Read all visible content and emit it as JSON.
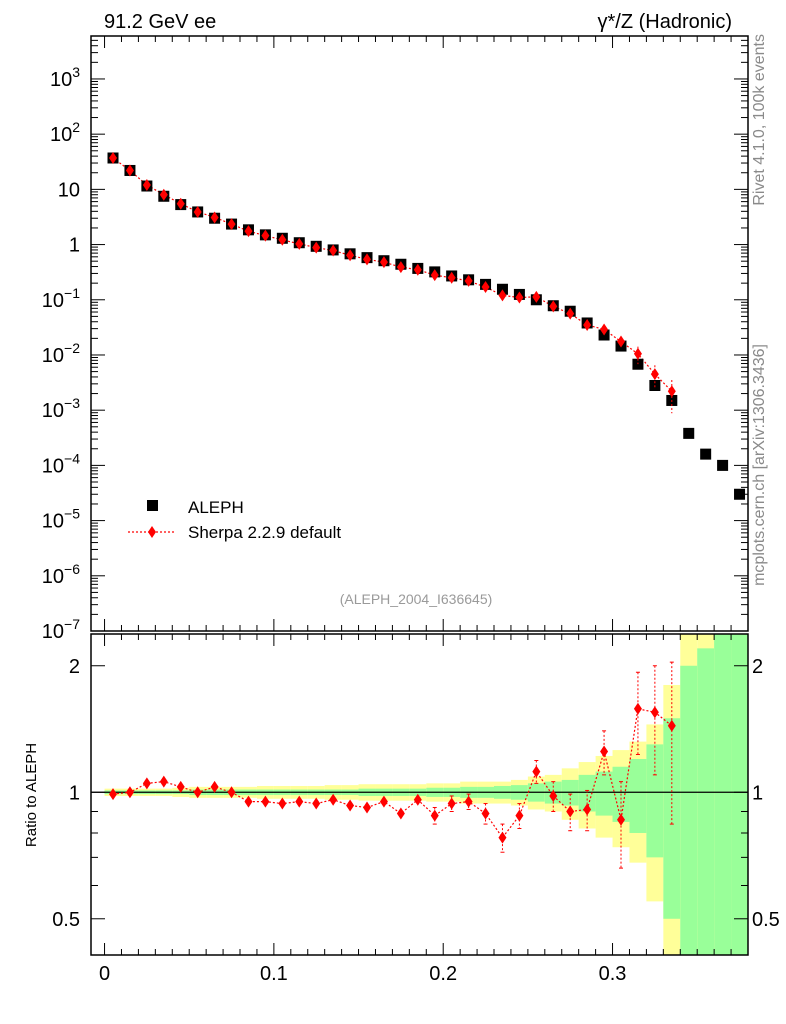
{
  "header": {
    "left_title": "91.2 GeV ee",
    "right_title": "γ*/Z (Hadronic)"
  },
  "side_labels": {
    "rivet": "Rivet 4.1.0,  100k events",
    "mcplots": "mcplots.cern.ch [arXiv:1306.3436]"
  },
  "watermark": "(ALEPH_2004_I636645)",
  "legend": {
    "data_label": "ALEPH",
    "mc_label": "Sherpa 2.2.9 default"
  },
  "colors": {
    "data": "#000000",
    "mc": "#ff0000",
    "band_inner": "#99ff99",
    "band_outer": "#ffff99",
    "side_text": "#8a8a8a"
  },
  "chart_data": [
    {
      "type": "scatter",
      "yscale": "log",
      "xlim": [
        -0.008,
        0.38
      ],
      "ylim": [
        1e-07,
        6000
      ],
      "ytick_labels": [
        {
          "base": "10",
          "exp": "3",
          "value": 1000
        },
        {
          "base": "10",
          "exp": "2",
          "value": 100
        },
        {
          "base": "10",
          "exp": "",
          "value": 10
        },
        {
          "base": "1",
          "exp": "",
          "value": 1
        },
        {
          "base": "10",
          "exp": "−1",
          "value": 0.1
        },
        {
          "base": "10",
          "exp": "−2",
          "value": 0.01
        },
        {
          "base": "10",
          "exp": "−3",
          "value": 0.001
        },
        {
          "base": "10",
          "exp": "−4",
          "value": 0.0001
        },
        {
          "base": "10",
          "exp": "−5",
          "value": 1e-05
        },
        {
          "base": "10",
          "exp": "−6",
          "value": 1e-06
        },
        {
          "base": "10",
          "exp": "−7",
          "value": 1e-07
        }
      ],
      "series": [
        {
          "name": "ALEPH",
          "marker": "square",
          "x": [
            0.005,
            0.015,
            0.025,
            0.035,
            0.045,
            0.055,
            0.065,
            0.075,
            0.085,
            0.095,
            0.105,
            0.115,
            0.125,
            0.135,
            0.145,
            0.155,
            0.165,
            0.175,
            0.185,
            0.195,
            0.205,
            0.215,
            0.225,
            0.235,
            0.245,
            0.255,
            0.265,
            0.275,
            0.285,
            0.295,
            0.305,
            0.315,
            0.325,
            0.335,
            0.345,
            0.355,
            0.365,
            0.375
          ],
          "y": [
            37,
            22,
            11.5,
            7.5,
            5.3,
            3.9,
            3.0,
            2.35,
            1.85,
            1.5,
            1.3,
            1.08,
            0.93,
            0.8,
            0.68,
            0.58,
            0.51,
            0.44,
            0.37,
            0.32,
            0.27,
            0.23,
            0.19,
            0.155,
            0.125,
            0.1,
            0.078,
            0.062,
            0.038,
            0.023,
            0.0145,
            0.0068,
            0.0028,
            0.0015,
            0.00038,
            0.00016,
            0.0001,
            3e-05
          ]
        },
        {
          "name": "Sherpa 2.2.9 default",
          "marker": "diamond",
          "x": [
            0.005,
            0.015,
            0.025,
            0.035,
            0.045,
            0.055,
            0.065,
            0.075,
            0.085,
            0.095,
            0.105,
            0.115,
            0.125,
            0.135,
            0.145,
            0.155,
            0.165,
            0.175,
            0.185,
            0.195,
            0.205,
            0.215,
            0.225,
            0.235,
            0.245,
            0.255,
            0.265,
            0.275,
            0.285,
            0.295,
            0.305,
            0.315,
            0.325,
            0.335
          ],
          "y": [
            37,
            22,
            12,
            8,
            5.5,
            3.9,
            3.1,
            2.35,
            1.75,
            1.45,
            1.22,
            1.03,
            0.88,
            0.78,
            0.64,
            0.54,
            0.48,
            0.39,
            0.35,
            0.28,
            0.25,
            0.22,
            0.17,
            0.12,
            0.11,
            0.113,
            0.076,
            0.056,
            0.035,
            0.029,
            0.0175,
            0.0105,
            0.0045,
            0.0022
          ]
        }
      ]
    },
    {
      "type": "scatter",
      "yscale": "log",
      "ylabel": "Ratio to ALEPH",
      "xlim": [
        -0.008,
        0.38
      ],
      "ylim": [
        0.41,
        2.38
      ],
      "xticks": [
        0,
        0.1,
        0.2,
        0.3
      ],
      "xtick_labels": [
        "0",
        "0.1",
        "0.2",
        "0.3"
      ],
      "yticks": [
        0.5,
        1,
        2
      ],
      "ytick_labels": [
        "0.5",
        "1",
        "2"
      ],
      "bins": [
        0,
        0.01,
        0.02,
        0.03,
        0.04,
        0.05,
        0.06,
        0.07,
        0.08,
        0.09,
        0.1,
        0.11,
        0.12,
        0.13,
        0.14,
        0.15,
        0.16,
        0.17,
        0.18,
        0.19,
        0.2,
        0.21,
        0.22,
        0.23,
        0.24,
        0.25,
        0.26,
        0.27,
        0.28,
        0.29,
        0.3,
        0.31,
        0.32,
        0.33,
        0.34,
        0.35,
        0.36,
        0.37,
        0.38
      ],
      "band_inner_halfwidth": [
        0.01,
        0.01,
        0.01,
        0.01,
        0.01,
        0.015,
        0.015,
        0.015,
        0.015,
        0.015,
        0.015,
        0.015,
        0.015,
        0.015,
        0.015,
        0.02,
        0.02,
        0.02,
        0.02,
        0.025,
        0.025,
        0.03,
        0.03,
        0.035,
        0.04,
        0.05,
        0.06,
        0.07,
        0.1,
        0.12,
        0.15,
        0.2,
        0.3,
        0.5,
        1.0,
        1.2,
        1.8,
        2.3
      ],
      "band_outer_halfwidth": [
        0.02,
        0.02,
        0.02,
        0.02,
        0.025,
        0.03,
        0.03,
        0.03,
        0.03,
        0.035,
        0.035,
        0.035,
        0.035,
        0.04,
        0.04,
        0.045,
        0.045,
        0.045,
        0.045,
        0.05,
        0.05,
        0.06,
        0.06,
        0.06,
        0.07,
        0.09,
        0.1,
        0.14,
        0.18,
        0.22,
        0.26,
        0.32,
        0.45,
        0.8,
        1.4,
        1.8,
        2.3,
        2.6
      ],
      "series": [
        {
          "name": "Sherpa 2.2.9 default",
          "x": [
            0.005,
            0.015,
            0.025,
            0.035,
            0.045,
            0.055,
            0.065,
            0.075,
            0.085,
            0.095,
            0.105,
            0.115,
            0.125,
            0.135,
            0.145,
            0.155,
            0.165,
            0.175,
            0.185,
            0.195,
            0.205,
            0.215,
            0.225,
            0.235,
            0.245,
            0.255,
            0.265,
            0.275,
            0.285,
            0.295,
            0.305,
            0.315,
            0.325,
            0.335
          ],
          "y": [
            0.99,
            1.0,
            1.05,
            1.06,
            1.03,
            1.0,
            1.03,
            1.0,
            0.95,
            0.95,
            0.94,
            0.95,
            0.94,
            0.96,
            0.93,
            0.92,
            0.95,
            0.89,
            0.96,
            0.88,
            0.94,
            0.95,
            0.89,
            0.78,
            0.88,
            1.12,
            0.98,
            0.9,
            0.91,
            1.25,
            0.86,
            1.58,
            1.55,
            1.44
          ],
          "err": [
            0.01,
            0.01,
            0.015,
            0.015,
            0.015,
            0.015,
            0.015,
            0.015,
            0.02,
            0.02,
            0.02,
            0.02,
            0.02,
            0.02,
            0.025,
            0.025,
            0.03,
            0.03,
            0.03,
            0.04,
            0.04,
            0.04,
            0.05,
            0.06,
            0.06,
            0.07,
            0.08,
            0.09,
            0.1,
            0.15,
            0.2,
            0.35,
            0.45,
            0.6
          ]
        }
      ]
    }
  ]
}
